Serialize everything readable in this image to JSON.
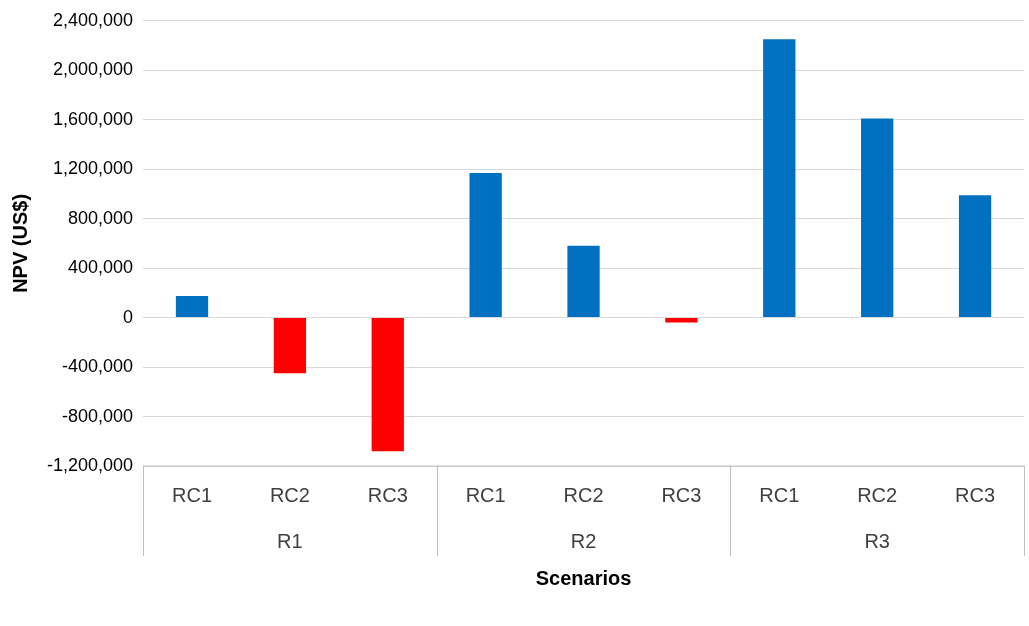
{
  "chart_data": {
    "type": "bar",
    "xlabel": "Scenarios",
    "ylabel": "NPV (US$)",
    "categories": [
      "RC1",
      "RC2",
      "RC3",
      "RC1",
      "RC2",
      "RC3",
      "RC1",
      "RC2",
      "RC3"
    ],
    "values": [
      175000,
      -450000,
      -1080000,
      1170000,
      580000,
      -40000,
      2250000,
      1610000,
      990000
    ],
    "colors": [
      "#0070c0",
      "#ff0000",
      "#ff0000",
      "#0070c0",
      "#0070c0",
      "#ff0000",
      "#0070c0",
      "#0070c0",
      "#0070c0"
    ],
    "annotations": [
      "R1",
      "R2",
      "R3"
    ],
    "ylim": [
      -1200000,
      2400000
    ],
    "yticks": [
      {
        "value": -1200000,
        "label": "-1,200,000"
      },
      {
        "value": -800000,
        "label": "-800,000"
      },
      {
        "value": -400000,
        "label": "-400,000"
      },
      {
        "value": 0,
        "label": "0"
      },
      {
        "value": 400000,
        "label": "400,000"
      },
      {
        "value": 800000,
        "label": "800,000"
      },
      {
        "value": 1200000,
        "label": "1,200,000"
      },
      {
        "value": 1600000,
        "label": "1,600,000"
      },
      {
        "value": 2000000,
        "label": "2,000,000"
      },
      {
        "value": 2400000,
        "label": "2,400,000"
      }
    ],
    "grid": "y",
    "legend": false
  }
}
